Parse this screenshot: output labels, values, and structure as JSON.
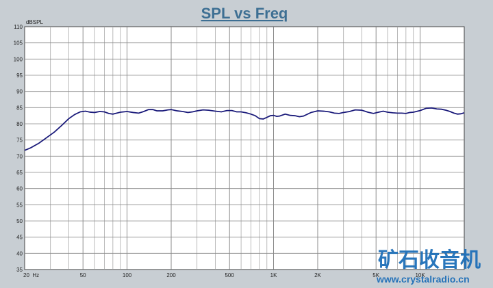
{
  "chart_data": {
    "type": "line",
    "title": "SPL vs Freq",
    "ylabel": "dBSPL",
    "xlabel": "",
    "xscale": "log",
    "xlim": [
      20,
      20000
    ],
    "ylim": [
      35,
      110
    ],
    "grid": true,
    "y_ticks": [
      35,
      40,
      45,
      50,
      55,
      60,
      65,
      70,
      75,
      80,
      85,
      90,
      95,
      100,
      105,
      110
    ],
    "x_tick_labels": [
      {
        "value": 20,
        "label": "20  Hz"
      },
      {
        "value": 50,
        "label": "50"
      },
      {
        "value": 100,
        "label": "100"
      },
      {
        "value": 200,
        "label": "200"
      },
      {
        "value": 500,
        "label": "500"
      },
      {
        "value": 1000,
        "label": "1K"
      },
      {
        "value": 2000,
        "label": "2K"
      },
      {
        "value": 5000,
        "label": "5K"
      },
      {
        "value": 10000,
        "label": "10K"
      }
    ],
    "series": [
      {
        "color": "#1a1a7a",
        "x": [
          20,
          22,
          25,
          28,
          32,
          36,
          40,
          44,
          48,
          52,
          56,
          60,
          65,
          70,
          75,
          80,
          85,
          90,
          100,
          110,
          120,
          130,
          140,
          150,
          160,
          175,
          190,
          200,
          220,
          240,
          260,
          280,
          300,
          330,
          360,
          400,
          440,
          480,
          520,
          560,
          600,
          650,
          700,
          750,
          800,
          850,
          900,
          950,
          1000,
          1050,
          1100,
          1200,
          1300,
          1400,
          1500,
          1600,
          1800,
          2000,
          2200,
          2400,
          2600,
          2800,
          3000,
          3300,
          3600,
          4000,
          4400,
          4800,
          5200,
          5600,
          6000,
          6500,
          7000,
          7500,
          8000,
          8500,
          9000,
          10000,
          11000,
          12000,
          13000,
          14000,
          15000,
          16000,
          17000,
          18000,
          19000,
          20000
        ],
        "y": [
          71.8,
          72.6,
          74.0,
          75.6,
          77.5,
          79.6,
          81.6,
          82.9,
          83.7,
          83.9,
          83.6,
          83.5,
          83.8,
          83.7,
          83.2,
          83.0,
          83.3,
          83.6,
          83.8,
          83.5,
          83.3,
          83.8,
          84.4,
          84.4,
          84.0,
          84.0,
          84.3,
          84.4,
          84.0,
          83.8,
          83.5,
          83.7,
          84.0,
          84.3,
          84.2,
          83.9,
          83.7,
          84.1,
          84.1,
          83.7,
          83.7,
          83.4,
          83.0,
          82.5,
          81.6,
          81.5,
          82.0,
          82.5,
          82.6,
          82.3,
          82.4,
          83.0,
          82.6,
          82.5,
          82.2,
          82.4,
          83.5,
          84.0,
          83.9,
          83.7,
          83.3,
          83.2,
          83.5,
          83.8,
          84.3,
          84.2,
          83.6,
          83.2,
          83.6,
          83.9,
          83.6,
          83.4,
          83.3,
          83.3,
          83.2,
          83.5,
          83.6,
          84.1,
          84.8,
          84.9,
          84.6,
          84.5,
          84.2,
          83.8,
          83.3,
          83.0,
          83.1,
          83.4
        ]
      }
    ]
  },
  "watermark": {
    "logo_text": "矿石收音机",
    "url_text": "www.crystalradio.cn"
  }
}
